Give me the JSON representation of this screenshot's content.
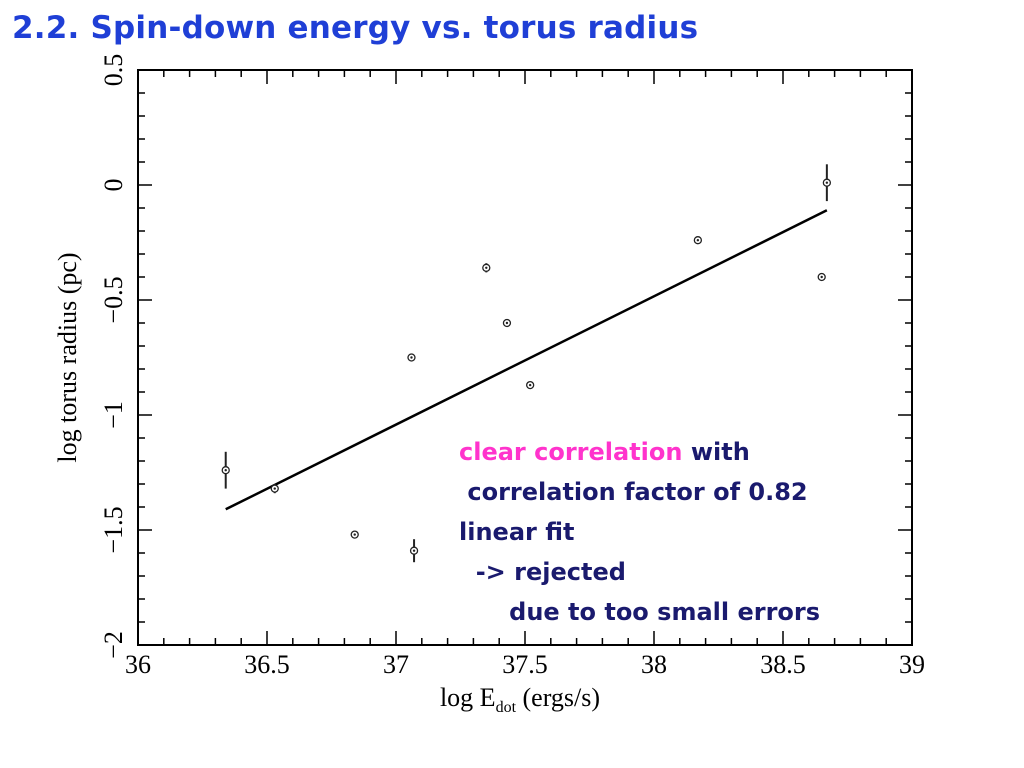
{
  "slide": {
    "title": "2.2. Spin-down energy vs. torus radius"
  },
  "annotation": {
    "highlight": "clear correlation",
    "line1_rest": " with",
    "line2": " correlation factor of 0.82",
    "line3": "linear fit",
    "line4": "  -> rejected",
    "line5": "      due to too small errors",
    "highlight_color": "#ff33cc",
    "text_color": "#1a1a6e"
  },
  "chart_data": {
    "type": "scatter",
    "xlabel_main": "log E",
    "xlabel_sub": "dot",
    "xlabel_tail": " (ergs/s)",
    "ylabel": "log torus radius (pc)",
    "xlim": [
      36,
      39
    ],
    "ylim": [
      -2,
      0.5
    ],
    "x_ticks": [
      {
        "value": 36,
        "label": "36"
      },
      {
        "value": 36.5,
        "label": "36.5"
      },
      {
        "value": 37,
        "label": "37"
      },
      {
        "value": 37.5,
        "label": "37.5"
      },
      {
        "value": 38,
        "label": "38"
      },
      {
        "value": 38.5,
        "label": "38.5"
      },
      {
        "value": 39,
        "label": "39"
      }
    ],
    "y_ticks": [
      {
        "value": -2,
        "label": "−2"
      },
      {
        "value": -1.5,
        "label": "−1.5"
      },
      {
        "value": -1,
        "label": "−1"
      },
      {
        "value": -0.5,
        "label": "−0.5"
      },
      {
        "value": 0,
        "label": "0"
      },
      {
        "value": 0.5,
        "label": "0.5"
      }
    ],
    "points": [
      {
        "x": 36.34,
        "y": -1.24,
        "err": 0.08
      },
      {
        "x": 36.53,
        "y": -1.32,
        "err": 0.02
      },
      {
        "x": 36.84,
        "y": -1.52,
        "err": 0.015
      },
      {
        "x": 37.06,
        "y": -0.75,
        "err": 0.015
      },
      {
        "x": 37.07,
        "y": -1.59,
        "err": 0.05
      },
      {
        "x": 37.35,
        "y": -0.36,
        "err": 0.02
      },
      {
        "x": 37.43,
        "y": -0.6,
        "err": 0.015
      },
      {
        "x": 37.52,
        "y": -0.87,
        "err": 0.015
      },
      {
        "x": 38.17,
        "y": -0.24,
        "err": 0.015
      },
      {
        "x": 38.65,
        "y": -0.4,
        "err": 0.015
      },
      {
        "x": 38.67,
        "y": 0.01,
        "err": 0.08
      }
    ],
    "fit_line": {
      "x": [
        36.34,
        38.67
      ],
      "y": [
        -1.41,
        -0.11
      ]
    },
    "grid": false,
    "marker_color": "#222222",
    "line_color": "#000000"
  }
}
